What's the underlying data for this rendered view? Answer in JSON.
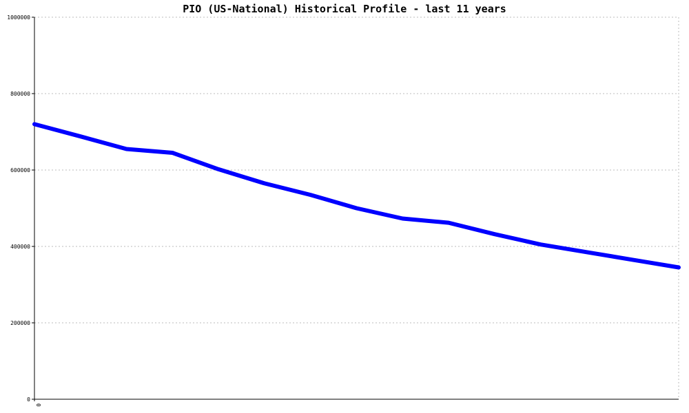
{
  "chart_data": {
    "type": "line",
    "title": "PIO (US-National) Historical Profile - last 11 years",
    "xlabel": "",
    "ylabel": "",
    "ylim": [
      0,
      1000000
    ],
    "yticks": [
      0,
      200000,
      400000,
      600000,
      800000,
      1000000
    ],
    "ytick_labels": [
      "0",
      "200000",
      "400000",
      "600000",
      "800000",
      "1000000"
    ],
    "xtick_labels": [
      "0"
    ],
    "grid": true,
    "legend": "none",
    "colors": {
      "line": "#0000ff",
      "grid": "#bbbbbb",
      "axis": "#000000"
    },
    "series": [
      {
        "values": [
          720000,
          688000,
          655000,
          645000,
          602000,
          565000,
          535000,
          500000,
          473000,
          462000,
          432000,
          405000,
          385000,
          365000,
          345000
        ]
      }
    ]
  }
}
